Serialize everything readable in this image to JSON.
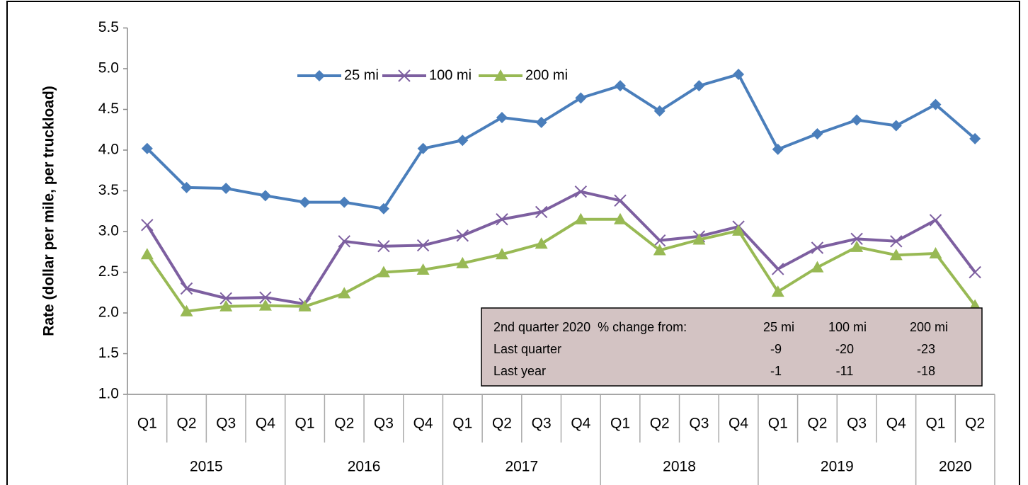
{
  "chart_data": {
    "type": "line",
    "y_label": "Rate (dollar per mile, per truckload)",
    "categories": [
      "Q1",
      "Q2",
      "Q3",
      "Q4",
      "Q1",
      "Q2",
      "Q3",
      "Q4",
      "Q1",
      "Q2",
      "Q3",
      "Q4",
      "Q1",
      "Q2",
      "Q3",
      "Q4",
      "Q1",
      "Q2",
      "Q3",
      "Q4",
      "Q1",
      "Q2"
    ],
    "category_groups": [
      {
        "label": "2015",
        "count": 4
      },
      {
        "label": "2016",
        "count": 4
      },
      {
        "label": "2017",
        "count": 4
      },
      {
        "label": "2018",
        "count": 4
      },
      {
        "label": "2019",
        "count": 4
      },
      {
        "label": "2020",
        "count": 2
      }
    ],
    "series": [
      {
        "name": "25 mi",
        "color": "#4a7ebb",
        "marker": "diamond",
        "values": [
          4.02,
          3.54,
          3.53,
          3.44,
          3.36,
          3.36,
          3.28,
          4.02,
          4.12,
          4.4,
          4.34,
          4.64,
          4.79,
          4.48,
          4.79,
          4.93,
          4.01,
          4.2,
          4.37,
          4.3,
          4.56,
          4.14
        ]
      },
      {
        "name": "100 mi",
        "color": "#7d5fa0",
        "marker": "x",
        "values": [
          3.08,
          2.3,
          2.18,
          2.19,
          2.11,
          2.88,
          2.82,
          2.83,
          2.95,
          3.15,
          3.24,
          3.49,
          3.38,
          2.89,
          2.94,
          3.06,
          2.54,
          2.8,
          2.91,
          2.88,
          3.14,
          2.5
        ]
      },
      {
        "name": "200 mi",
        "color": "#98b954",
        "marker": "triangle",
        "values": [
          2.72,
          2.02,
          2.08,
          2.09,
          2.08,
          2.24,
          2.5,
          2.53,
          2.61,
          2.72,
          2.85,
          3.15,
          3.15,
          2.77,
          2.9,
          3.01,
          2.26,
          2.56,
          2.81,
          2.71,
          2.73,
          2.09
        ]
      }
    ],
    "ylim": [
      1,
      5.5
    ],
    "yticks": [
      {
        "value": 1,
        "label": "1.0"
      },
      1.5,
      {
        "value": 2,
        "label": "2.0"
      },
      2.5,
      {
        "value": 3,
        "label": "3.0"
      },
      3.5,
      {
        "value": 4,
        "label": "4.0"
      },
      4.5,
      {
        "value": 5,
        "label": "5.0"
      },
      5.5
    ],
    "legend": "top",
    "table": {
      "header": [
        "2nd quarter 2020  % change from:",
        "25 mi",
        "100 mi",
        "200 mi"
      ],
      "rows": [
        [
          "Last quarter",
          -9,
          -20,
          -23
        ],
        [
          "Last year",
          -1,
          -11,
          -18
        ]
      ]
    }
  }
}
